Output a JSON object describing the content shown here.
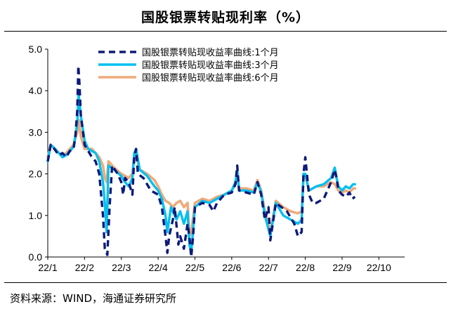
{
  "title": "国股银票转贴现利率（%）",
  "source": "资料来源：WIND，海通证券研究所",
  "chart_data": {
    "type": "line",
    "title": "国股银票转贴现利率（%）",
    "xlabel": "",
    "ylabel": "",
    "ylim": [
      0,
      5
    ],
    "yticks": [
      "0.0",
      "1.0",
      "2.0",
      "3.0",
      "4.0",
      "5.0"
    ],
    "ytick_values": [
      0,
      1,
      2,
      3,
      4,
      5
    ],
    "xticks": [
      "22/1",
      "22/2",
      "22/3",
      "22/4",
      "22/5",
      "22/6",
      "22/7",
      "22/8",
      "22/9",
      "22/10"
    ],
    "xlim": [
      0,
      9.7
    ],
    "legend_position": "top-center",
    "grid": false,
    "series": [
      {
        "name": "国股银票转贴现收益率曲线:1个月",
        "color": "#0d1a7a",
        "style": "dashed",
        "points": [
          [
            0,
            2.3
          ],
          [
            0.08,
            2.7
          ],
          [
            0.18,
            2.6
          ],
          [
            0.3,
            2.45
          ],
          [
            0.4,
            2.5
          ],
          [
            0.5,
            2.4
          ],
          [
            0.6,
            2.55
          ],
          [
            0.7,
            2.6
          ],
          [
            0.75,
            2.9
          ],
          [
            0.8,
            3.5
          ],
          [
            0.83,
            4.6
          ],
          [
            0.86,
            4.2
          ],
          [
            0.9,
            3.4
          ],
          [
            1.0,
            2.7
          ],
          [
            1.1,
            2.55
          ],
          [
            1.2,
            2.4
          ],
          [
            1.3,
            2.3
          ],
          [
            1.4,
            2.0
          ],
          [
            1.5,
            1.0
          ],
          [
            1.55,
            0.2
          ],
          [
            1.62,
            0.05
          ],
          [
            1.68,
            1.2
          ],
          [
            1.75,
            2.2
          ],
          [
            1.9,
            2.0
          ],
          [
            2.0,
            1.8
          ],
          [
            2.05,
            1.5
          ],
          [
            2.1,
            1.9
          ],
          [
            2.2,
            1.8
          ],
          [
            2.3,
            1.5
          ],
          [
            2.35,
            2.4
          ],
          [
            2.4,
            2.6
          ],
          [
            2.45,
            2.0
          ],
          [
            2.6,
            1.9
          ],
          [
            2.8,
            1.6
          ],
          [
            3.0,
            1.5
          ],
          [
            3.1,
            1.2
          ],
          [
            3.2,
            0.5
          ],
          [
            3.25,
            0.1
          ],
          [
            3.3,
            0.5
          ],
          [
            3.4,
            0.9
          ],
          [
            3.45,
            1.2
          ],
          [
            3.55,
            0.3
          ],
          [
            3.6,
            0.5
          ],
          [
            3.7,
            0.2
          ],
          [
            3.8,
            0.8
          ],
          [
            3.85,
            0.5
          ],
          [
            3.9,
            0.0
          ],
          [
            3.95,
            0.5
          ],
          [
            4.0,
            1.2
          ],
          [
            4.2,
            1.3
          ],
          [
            4.4,
            1.25
          ],
          [
            4.5,
            1.1
          ],
          [
            4.6,
            1.3
          ],
          [
            4.8,
            1.5
          ],
          [
            5.0,
            1.55
          ],
          [
            5.1,
            1.75
          ],
          [
            5.15,
            2.2
          ],
          [
            5.2,
            1.6
          ],
          [
            5.4,
            1.55
          ],
          [
            5.6,
            1.5
          ],
          [
            5.7,
            1.8
          ],
          [
            5.8,
            1.5
          ],
          [
            5.9,
            0.9
          ],
          [
            6.0,
            1.2
          ],
          [
            6.05,
            0.4
          ],
          [
            6.2,
            1.3
          ],
          [
            6.5,
            1.1
          ],
          [
            6.7,
            0.8
          ],
          [
            6.8,
            0.5
          ],
          [
            6.9,
            0.6
          ],
          [
            6.95,
            2.0
          ],
          [
            7.0,
            2.4
          ],
          [
            7.1,
            1.5
          ],
          [
            7.2,
            1.3
          ],
          [
            7.3,
            1.3
          ],
          [
            7.5,
            1.4
          ],
          [
            7.7,
            1.8
          ],
          [
            7.8,
            2.1
          ],
          [
            7.85,
            1.9
          ],
          [
            7.9,
            1.6
          ],
          [
            8.0,
            1.5
          ],
          [
            8.1,
            1.45
          ],
          [
            8.2,
            1.55
          ],
          [
            8.28,
            1.4
          ],
          [
            8.35,
            1.45
          ]
        ]
      },
      {
        "name": "国股银票转贴现收益率曲线:3个月",
        "color": "#00c0f0",
        "style": "solid",
        "points": [
          [
            0,
            2.3
          ],
          [
            0.08,
            2.7
          ],
          [
            0.2,
            2.6
          ],
          [
            0.3,
            2.5
          ],
          [
            0.4,
            2.4
          ],
          [
            0.5,
            2.45
          ],
          [
            0.6,
            2.55
          ],
          [
            0.7,
            2.65
          ],
          [
            0.8,
            3.2
          ],
          [
            0.84,
            3.9
          ],
          [
            0.9,
            3.4
          ],
          [
            1.0,
            2.8
          ],
          [
            1.1,
            2.6
          ],
          [
            1.3,
            2.5
          ],
          [
            1.4,
            2.3
          ],
          [
            1.5,
            1.8
          ],
          [
            1.55,
            1.3
          ],
          [
            1.6,
            0.6
          ],
          [
            1.65,
            2.2
          ],
          [
            1.8,
            2.1
          ],
          [
            2.0,
            1.95
          ],
          [
            2.1,
            1.8
          ],
          [
            2.2,
            1.7
          ],
          [
            2.3,
            1.9
          ],
          [
            2.35,
            2.5
          ],
          [
            2.4,
            2.6
          ],
          [
            2.5,
            2.1
          ],
          [
            2.7,
            1.95
          ],
          [
            2.9,
            1.7
          ],
          [
            3.0,
            1.6
          ],
          [
            3.1,
            1.4
          ],
          [
            3.2,
            1.0
          ],
          [
            3.25,
            0.6
          ],
          [
            3.35,
            1.2
          ],
          [
            3.5,
            0.9
          ],
          [
            3.6,
            1.1
          ],
          [
            3.7,
            0.8
          ],
          [
            3.8,
            1.1
          ],
          [
            3.85,
            0.3
          ],
          [
            3.9,
            0.1
          ],
          [
            4.0,
            1.2
          ],
          [
            4.2,
            1.35
          ],
          [
            4.4,
            1.3
          ],
          [
            4.6,
            1.4
          ],
          [
            4.8,
            1.5
          ],
          [
            5.0,
            1.6
          ],
          [
            5.1,
            1.8
          ],
          [
            5.15,
            2.1
          ],
          [
            5.2,
            1.6
          ],
          [
            5.4,
            1.6
          ],
          [
            5.6,
            1.55
          ],
          [
            5.7,
            1.8
          ],
          [
            5.8,
            1.55
          ],
          [
            5.9,
            1.0
          ],
          [
            6.05,
            0.5
          ],
          [
            6.2,
            1.3
          ],
          [
            6.4,
            1.0
          ],
          [
            6.6,
            0.9
          ],
          [
            6.8,
            0.8
          ],
          [
            6.9,
            0.9
          ],
          [
            6.95,
            2.0
          ],
          [
            7.0,
            2.0
          ],
          [
            7.1,
            1.6
          ],
          [
            7.3,
            1.7
          ],
          [
            7.5,
            1.75
          ],
          [
            7.7,
            1.9
          ],
          [
            7.8,
            2.15
          ],
          [
            7.85,
            1.9
          ],
          [
            7.9,
            1.7
          ],
          [
            8.0,
            1.6
          ],
          [
            8.1,
            1.7
          ],
          [
            8.2,
            1.65
          ],
          [
            8.3,
            1.75
          ],
          [
            8.35,
            1.75
          ]
        ]
      },
      {
        "name": "国股银票转贴现收益率曲线:6个月",
        "color": "#f0aa7a",
        "style": "solid",
        "points": [
          [
            0,
            2.4
          ],
          [
            0.08,
            2.7
          ],
          [
            0.2,
            2.6
          ],
          [
            0.3,
            2.5
          ],
          [
            0.4,
            2.45
          ],
          [
            0.5,
            2.5
          ],
          [
            0.6,
            2.6
          ],
          [
            0.7,
            2.7
          ],
          [
            0.8,
            3.0
          ],
          [
            0.84,
            3.3
          ],
          [
            0.9,
            2.9
          ],
          [
            1.0,
            2.6
          ],
          [
            1.2,
            2.6
          ],
          [
            1.4,
            2.4
          ],
          [
            1.5,
            2.2
          ],
          [
            1.55,
            1.9
          ],
          [
            1.6,
            1.8
          ],
          [
            1.65,
            2.3
          ],
          [
            1.8,
            2.15
          ],
          [
            2.0,
            2.0
          ],
          [
            2.2,
            1.9
          ],
          [
            2.3,
            2.0
          ],
          [
            2.35,
            2.4
          ],
          [
            2.4,
            2.5
          ],
          [
            2.5,
            2.1
          ],
          [
            2.7,
            2.0
          ],
          [
            2.9,
            1.85
          ],
          [
            3.0,
            1.7
          ],
          [
            3.1,
            1.5
          ],
          [
            3.2,
            1.35
          ],
          [
            3.3,
            1.3
          ],
          [
            3.4,
            1.2
          ],
          [
            3.5,
            1.3
          ],
          [
            3.6,
            1.35
          ],
          [
            3.7,
            1.2
          ],
          [
            3.8,
            1.3
          ],
          [
            3.85,
            0.5
          ],
          [
            3.9,
            0.6
          ],
          [
            4.0,
            1.3
          ],
          [
            4.2,
            1.4
          ],
          [
            4.4,
            1.35
          ],
          [
            4.6,
            1.45
          ],
          [
            4.8,
            1.5
          ],
          [
            5.0,
            1.6
          ],
          [
            5.1,
            1.75
          ],
          [
            5.15,
            1.95
          ],
          [
            5.2,
            1.65
          ],
          [
            5.4,
            1.65
          ],
          [
            5.6,
            1.6
          ],
          [
            5.7,
            1.85
          ],
          [
            5.8,
            1.6
          ],
          [
            5.9,
            1.1
          ],
          [
            6.05,
            0.6
          ],
          [
            6.2,
            1.35
          ],
          [
            6.4,
            1.2
          ],
          [
            6.6,
            1.1
          ],
          [
            6.8,
            1.05
          ],
          [
            6.9,
            1.1
          ],
          [
            6.95,
            1.9
          ],
          [
            7.0,
            1.95
          ],
          [
            7.1,
            1.6
          ],
          [
            7.3,
            1.7
          ],
          [
            7.5,
            1.7
          ],
          [
            7.7,
            1.8
          ],
          [
            7.8,
            1.75
          ],
          [
            7.9,
            1.6
          ],
          [
            8.0,
            1.55
          ],
          [
            8.1,
            1.6
          ],
          [
            8.2,
            1.55
          ],
          [
            8.3,
            1.65
          ],
          [
            8.35,
            1.65
          ]
        ]
      }
    ]
  }
}
